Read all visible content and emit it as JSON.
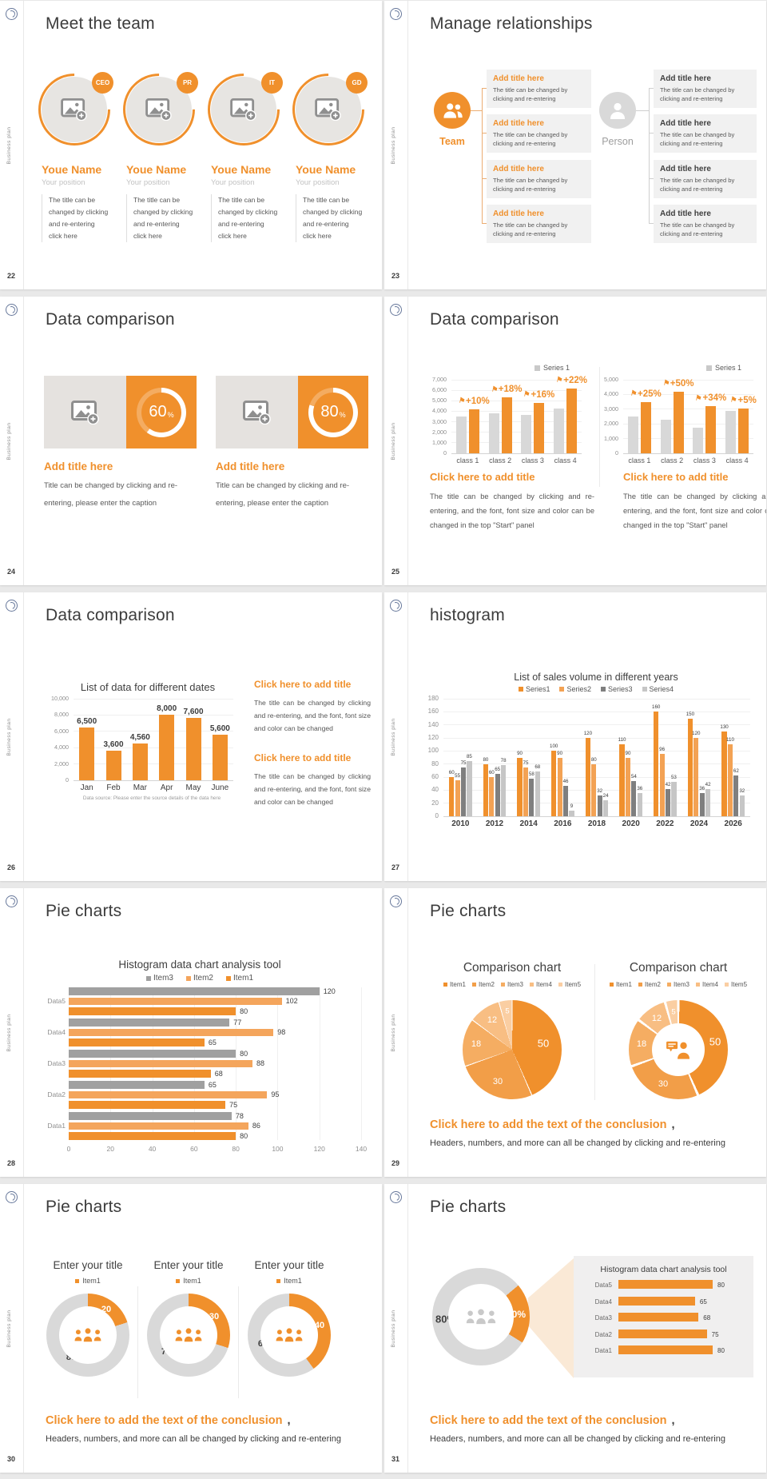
{
  "common": {
    "sidebar_text": "Business plan",
    "accent": "#F0902C"
  },
  "slides": [
    {
      "page": "22",
      "title": "Meet the team",
      "members": [
        {
          "badge": "CEO",
          "name": "Youe Name",
          "position": "Your position",
          "desc": "The title can be changed by clicking and re-entering click here"
        },
        {
          "badge": "PR",
          "name": "Youe Name",
          "position": "Your position",
          "desc": "The title can be changed by clicking and re-entering click here"
        },
        {
          "badge": "IT",
          "name": "Youe Name",
          "position": "Your position",
          "desc": "The title can be changed by clicking and re-entering click here"
        },
        {
          "badge": "GD",
          "name": "Youe Name",
          "position": "Your position",
          "desc": "The title can be changed by clicking and re-entering click here"
        }
      ]
    },
    {
      "page": "23",
      "title": "Manage relationships",
      "team_label": "Team",
      "person_label": "Person",
      "box_heading": "Add title here",
      "box_body": "The title can be changed by clicking and re-entering"
    },
    {
      "page": "24",
      "title": "Data comparison",
      "cards": [
        {
          "value": 60,
          "value_label": "60",
          "unit": "%",
          "heading": "Add title here",
          "caption": "Title can be changed by clicking and re-entering, please enter the caption"
        },
        {
          "value": 80,
          "value_label": "80",
          "unit": "%",
          "heading": "Add title here",
          "caption": "Title can be changed by clicking and re-entering, please enter the caption"
        }
      ]
    },
    {
      "page": "25",
      "title": "Data comparison",
      "legend": "Series 1",
      "charts": [
        {
          "type": "bar",
          "categories": [
            "class 1",
            "class 2",
            "class 3",
            "class 4"
          ],
          "ymax": 7000,
          "yticks": [
            "0",
            "1,000",
            "2,000",
            "3,000",
            "4,000",
            "5,000",
            "6,000",
            "7,000"
          ],
          "series": [
            {
              "name": "base",
              "color": "#D8D8D8",
              "values": [
                3500,
                3800,
                3650,
                4300
              ]
            },
            {
              "name": "Series 1",
              "color": "#F0902C",
              "values": [
                4200,
                5300,
                4800,
                6200
              ]
            }
          ],
          "growth": [
            "+10%",
            "+18%",
            "+16%",
            "+22%"
          ]
        },
        {
          "type": "bar",
          "categories": [
            "class 1",
            "class 2",
            "class 3",
            "class 4"
          ],
          "ymax": 5000,
          "yticks": [
            "0",
            "1,000",
            "2,000",
            "3,000",
            "4,000",
            "5,000"
          ],
          "series": [
            {
              "name": "base",
              "color": "#D8D8D8",
              "values": [
                2500,
                2300,
                1750,
                2900
              ]
            },
            {
              "name": "Series 1",
              "color": "#F0902C",
              "values": [
                3500,
                4200,
                3200,
                3050
              ]
            }
          ],
          "growth": [
            "+25%",
            "+50%",
            "+34%",
            "+5%"
          ]
        }
      ],
      "footer_heading": "Click here to add title",
      "footer_body": "The title can be changed by clicking and re-entering, and the font, font size and color can be changed in the top \"Start\" panel"
    },
    {
      "page": "26",
      "title": "Data comparison",
      "chart": {
        "type": "bar",
        "title": "List of data for different dates",
        "categories": [
          "Jan",
          "Feb",
          "Mar",
          "Apr",
          "May",
          "June"
        ],
        "values": [
          6500,
          3600,
          4560,
          8000,
          7600,
          5600
        ],
        "value_labels": [
          "6,500",
          "3,600",
          "4,560",
          "8,000",
          "7,600",
          "5,600"
        ],
        "ymax": 10000,
        "yticks": [
          "0",
          "2,000",
          "4,000",
          "6,000",
          "8,000",
          "10,000"
        ],
        "color": "#F0902C",
        "source": "Data source: Please enter the source details of the data here"
      },
      "block_heading": "Click here to add title",
      "block_body": "The title can be changed by clicking and re-entering, and the font, font size and color can be changed"
    },
    {
      "page": "27",
      "title": "histogram",
      "chart": {
        "type": "bar",
        "title": "List of sales volume in different years",
        "categories": [
          "2010",
          "2012",
          "2014",
          "2016",
          "2018",
          "2020",
          "2022",
          "2024",
          "2026"
        ],
        "ymax": 180,
        "yticks": [
          "0",
          "20",
          "40",
          "60",
          "80",
          "100",
          "120",
          "140",
          "160",
          "180"
        ],
        "series": [
          {
            "name": "Series1",
            "color": "#F0902C",
            "values": [
              60,
              80,
              90,
              100,
              120,
              110,
              160,
              150,
              130
            ]
          },
          {
            "name": "Series2",
            "color": "#F3A254",
            "values": [
              55,
              60,
              75,
              90,
              80,
              90,
              96,
              120,
              110
            ]
          },
          {
            "name": "Series3",
            "color": "#7F7F7F",
            "values": [
              75,
              65,
              58,
              46,
              32,
              54,
              42,
              36,
              62
            ]
          },
          {
            "name": "Series4",
            "color": "#C6C6C6",
            "values": [
              85,
              78,
              68,
              9,
              24,
              36,
              53,
              42,
              32
            ]
          }
        ]
      }
    },
    {
      "page": "28",
      "title": "Pie charts",
      "chart": {
        "type": "bar",
        "title": "Histogram data chart analysis tool",
        "xmax": 140,
        "xticks": [
          "0",
          "20",
          "40",
          "60",
          "80",
          "100",
          "120",
          "140"
        ],
        "categories": [
          "Data5",
          "Data4",
          "Data3",
          "Data2",
          "Data1"
        ],
        "series": [
          {
            "name": "Item3",
            "color": "#A0A0A0",
            "values": [
              120,
              77,
              80,
              65,
              78
            ]
          },
          {
            "name": "Item2",
            "color": "#F4A55C",
            "values": [
              102,
              98,
              88,
              95,
              86
            ]
          },
          {
            "name": "Item1",
            "color": "#F0902C",
            "values": [
              80,
              65,
              68,
              75,
              80
            ]
          }
        ]
      }
    },
    {
      "page": "29",
      "title": "Pie charts",
      "chart_title": "Comparison chart",
      "legend": [
        "Item1",
        "Item2",
        "Item3",
        "Item4",
        "Item5"
      ],
      "values": [
        50,
        30,
        18,
        12,
        5
      ],
      "colors": [
        "#F0902C",
        "#F29E48",
        "#F5AD62",
        "#F8BE83",
        "#FACEA2"
      ],
      "conclusion_heading": "Click here to add the text of the conclusion",
      "conclusion_suffix": ",",
      "conclusion_body": "Headers, numbers, and more can all be changed by clicking and re-entering"
    },
    {
      "page": "30",
      "title": "Pie charts",
      "donut_title": "Enter your title",
      "legend": "Item1",
      "donuts": [
        {
          "value": 20,
          "rest": 80
        },
        {
          "value": 30,
          "rest": 70
        },
        {
          "value": 40,
          "rest": 60
        }
      ],
      "conclusion_heading": "Click here to add the text of the conclusion",
      "conclusion_suffix": ",",
      "conclusion_body": "Headers, numbers, and more can all be changed by clicking and re-entering"
    },
    {
      "page": "31",
      "title": "Pie charts",
      "donut": {
        "value": 20,
        "orange_label": "20%",
        "gray_label": "80%"
      },
      "panel": {
        "title": "Histogram data chart analysis tool",
        "categories": [
          "Data5",
          "Data4",
          "Data3",
          "Data2",
          "Data1"
        ],
        "values": [
          80,
          65,
          68,
          75,
          80
        ]
      },
      "conclusion_heading": "Click here to add the text of the conclusion",
      "conclusion_suffix": ",",
      "conclusion_body": "Headers, numbers, and more can all be changed by clicking and re-entering"
    }
  ]
}
